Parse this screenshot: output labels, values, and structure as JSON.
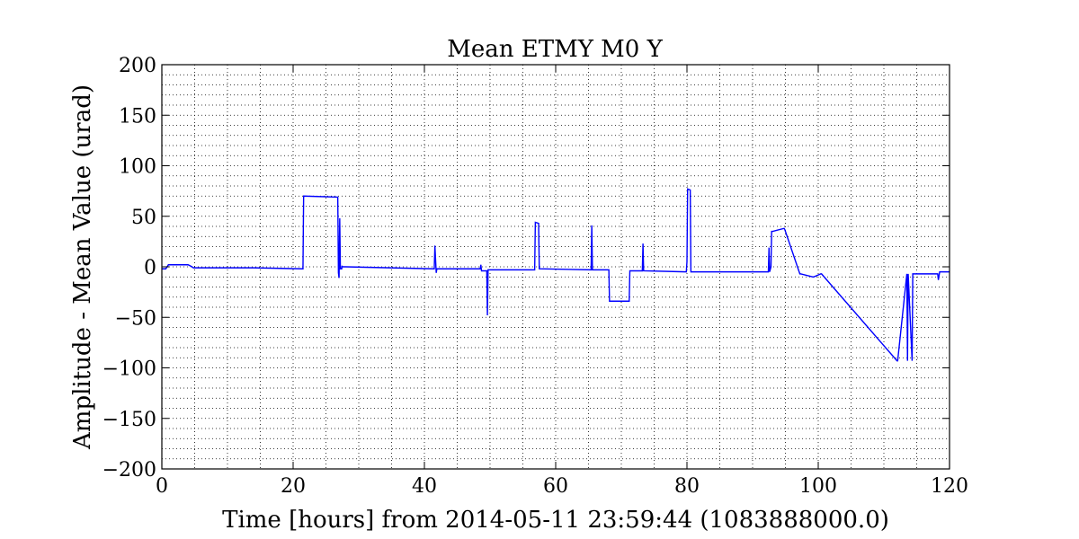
{
  "chart_data": {
    "type": "line",
    "title": "Mean ETMY M0 Y",
    "xlabel": "Time [hours] from 2014-05-11 23:59:44 (1083888000.0)",
    "ylabel": "Amplitude - Mean Value (urad)",
    "xlim": [
      0,
      120
    ],
    "ylim": [
      -200,
      200
    ],
    "x_ticks": [
      0,
      20,
      40,
      60,
      80,
      100,
      120
    ],
    "x_tick_labels": [
      "0",
      "20",
      "40",
      "60",
      "80",
      "100",
      "120"
    ],
    "y_ticks": [
      200,
      150,
      100,
      50,
      0,
      -50,
      -100,
      -150,
      -200
    ],
    "y_tick_labels": [
      "200",
      "150",
      "100",
      "50",
      "0",
      "−50",
      "−100",
      "−150",
      "−200"
    ],
    "grid": true,
    "minor_grid": true,
    "line_color": "#0000ff",
    "series": [
      {
        "x": [
          0,
          0.6,
          1.0,
          1.2,
          4.0,
          4.6,
          4.8,
          14.0,
          21.5,
          21.6,
          26.8,
          26.9,
          27.0,
          27.1,
          27.2,
          27.4,
          27.45,
          27.5,
          28.0,
          41.5,
          41.6,
          41.8,
          41.9,
          42.0,
          48.5,
          48.6,
          48.7,
          49.0,
          49.5,
          49.6,
          49.7,
          56.8,
          56.9,
          57.4,
          57.5,
          65.4,
          65.5,
          65.6,
          68.1,
          68.2,
          71.2,
          71.3,
          73.2,
          73.3,
          73.4,
          79.9,
          80.0,
          80.1,
          80.5,
          80.6,
          80.7,
          92.4,
          92.5,
          92.6,
          92.8,
          92.9,
          93.0,
          94.8,
          94.9,
          97.2,
          97.3,
          99.2,
          99.3,
          100.4,
          100.5,
          112.0,
          112.1,
          113.5,
          113.6,
          113.7,
          114.3,
          114.4,
          118.2,
          118.3,
          118.5,
          120.0
        ],
        "y": [
          -2,
          -2,
          2,
          2,
          2,
          0,
          -1,
          -1,
          -2,
          70,
          69,
          -6,
          -11,
          48,
          -2,
          -2,
          1,
          0,
          0,
          -2,
          21,
          -6,
          -2,
          -2,
          -2,
          2,
          -4,
          -4,
          -4,
          -48,
          -3,
          -3,
          44,
          43,
          -2,
          -3,
          41,
          -3,
          -3,
          -34,
          -34,
          -4,
          -4,
          23,
          -4,
          -5,
          5,
          77,
          76,
          -5,
          -5,
          -5,
          19,
          -5,
          0,
          35,
          35,
          38,
          37,
          -7,
          -7,
          -10,
          -10,
          -7,
          -7,
          -93,
          -93,
          -7,
          -93,
          -7,
          -93,
          -7,
          -7,
          -13,
          -5,
          -5
        ]
      }
    ]
  }
}
